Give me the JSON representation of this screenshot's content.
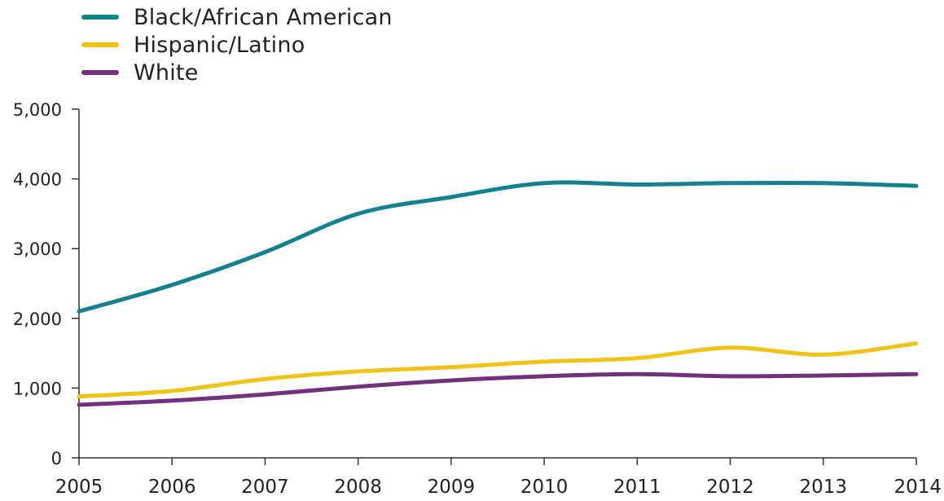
{
  "chart_data": {
    "type": "line",
    "title": "",
    "xlabel": "",
    "ylabel": "",
    "x": [
      2005,
      2006,
      2007,
      2008,
      2009,
      2010,
      2011,
      2012,
      2013,
      2014
    ],
    "x_tick_labels": [
      "2005",
      "2006",
      "2007",
      "2008",
      "2009",
      "2010",
      "2011",
      "2012",
      "2013",
      "2014"
    ],
    "ylim": [
      0,
      5000
    ],
    "y_ticks": [
      0,
      1000,
      2000,
      3000,
      4000,
      5000
    ],
    "y_tick_labels": [
      "0",
      "1,000",
      "2,000",
      "3,000",
      "4,000",
      "5,000"
    ],
    "grid": false,
    "legend_position": "top-left",
    "series": [
      {
        "name": "Black/African American",
        "color": "#13818f",
        "values": [
          2100,
          2480,
          2950,
          3500,
          3740,
          3940,
          3920,
          3940,
          3940,
          3900
        ]
      },
      {
        "name": "Hispanic/Latino",
        "color": "#f2c316",
        "values": [
          880,
          960,
          1130,
          1240,
          1300,
          1380,
          1430,
          1580,
          1480,
          1640
        ]
      },
      {
        "name": "White",
        "color": "#74307f",
        "values": [
          760,
          820,
          910,
          1020,
          1110,
          1170,
          1200,
          1170,
          1180,
          1200
        ]
      }
    ]
  }
}
